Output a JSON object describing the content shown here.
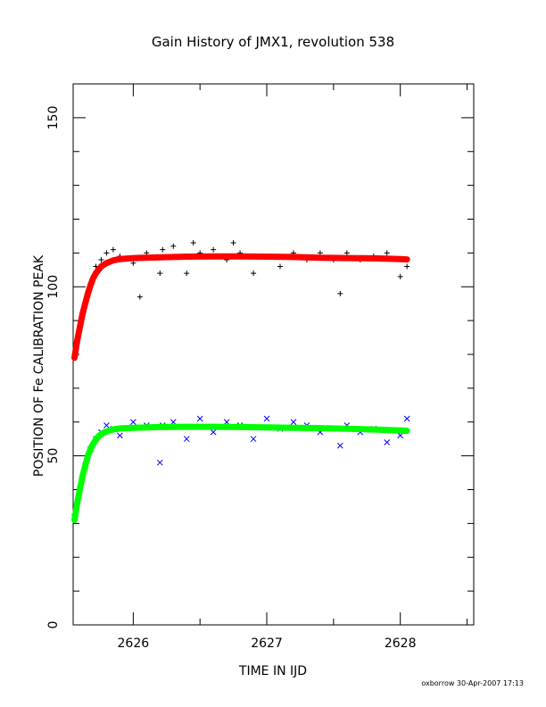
{
  "chart_data": {
    "type": "scatter",
    "title": "Gain History of JMX1, revolution 538",
    "xlabel": "TIME IN IJD",
    "ylabel": "POSITION OF Fe CALIBRATION PEAK",
    "xlim": [
      2625.55,
      2628.55
    ],
    "ylim": [
      0,
      160
    ],
    "x_ticks": [
      2626,
      2627,
      2628
    ],
    "x_tick_labels": [
      "2626",
      "2627",
      "2628"
    ],
    "y_ticks": [
      0,
      50,
      100,
      150
    ],
    "y_tick_labels": [
      "0",
      "50",
      "100",
      "150"
    ],
    "grid": false,
    "legend": "none",
    "footer": "oxborrow 30-Apr-2007 17:13",
    "series": [
      {
        "marker": "plus",
        "color": "#000000",
        "x": [
          2625.56,
          2625.6,
          2625.64,
          2625.68,
          2625.72,
          2625.76,
          2625.8,
          2625.85,
          2625.9,
          2626.0,
          2626.05,
          2626.1,
          2626.2,
          2626.22,
          2626.3,
          2626.4,
          2626.45,
          2626.5,
          2626.6,
          2626.7,
          2626.75,
          2626.8,
          2626.9,
          2627.0,
          2627.1,
          2627.2,
          2627.3,
          2627.4,
          2627.5,
          2627.55,
          2627.6,
          2627.7,
          2627.8,
          2627.9,
          2628.0,
          2628.05
        ],
        "y": [
          80,
          88,
          95,
          101,
          106,
          108,
          110,
          111,
          109,
          107,
          97,
          110,
          104,
          111,
          112,
          104,
          113,
          110,
          111,
          108,
          113,
          110,
          104,
          109,
          106,
          110,
          108,
          110,
          108,
          98,
          110,
          108,
          109,
          110,
          103,
          106
        ]
      },
      {
        "marker": "line",
        "color": "#ff0000",
        "x": [
          2625.56,
          2625.58,
          2625.6,
          2625.62,
          2625.64,
          2625.66,
          2625.68,
          2625.7,
          2625.72,
          2625.74,
          2625.76,
          2625.8,
          2625.85,
          2625.9,
          2626.0,
          2626.2,
          2626.4,
          2626.6,
          2626.8,
          2627.0,
          2627.2,
          2627.4,
          2627.6,
          2627.8,
          2628.0,
          2628.05
        ],
        "y": [
          79,
          84,
          88,
          92,
          95,
          98,
          100.5,
          102.5,
          104,
          105,
          106,
          107,
          107.8,
          108.2,
          108.5,
          108.7,
          108.9,
          109,
          109,
          108.9,
          108.8,
          108.6,
          108.5,
          108.4,
          108.2,
          108.1
        ]
      },
      {
        "marker": "cross",
        "color": "#0000ff",
        "x": [
          2625.56,
          2625.6,
          2625.64,
          2625.68,
          2625.72,
          2625.76,
          2625.8,
          2625.85,
          2625.9,
          2626.0,
          2626.1,
          2626.2,
          2626.22,
          2626.3,
          2626.4,
          2626.5,
          2626.6,
          2626.7,
          2626.8,
          2626.9,
          2627.0,
          2627.1,
          2627.2,
          2627.3,
          2627.4,
          2627.5,
          2627.55,
          2627.6,
          2627.7,
          2627.8,
          2627.9,
          2628.0,
          2628.05
        ],
        "y": [
          32,
          40,
          47,
          52,
          55,
          57,
          59,
          58,
          56,
          60,
          59,
          48,
          59,
          60,
          55,
          61,
          57,
          60,
          59,
          55,
          61,
          58,
          60,
          59,
          57,
          58,
          53,
          59,
          57,
          58,
          54,
          56,
          61
        ]
      },
      {
        "marker": "line",
        "color": "#00ff00",
        "x": [
          2625.56,
          2625.58,
          2625.6,
          2625.62,
          2625.64,
          2625.66,
          2625.68,
          2625.7,
          2625.72,
          2625.74,
          2625.76,
          2625.8,
          2625.85,
          2625.9,
          2626.0,
          2626.2,
          2626.4,
          2626.6,
          2626.8,
          2627.0,
          2627.2,
          2627.4,
          2627.6,
          2627.8,
          2628.0,
          2628.05
        ],
        "y": [
          31,
          36,
          40,
          44,
          47,
          50,
          52,
          53.5,
          54.8,
          55.8,
          56.4,
          57.2,
          57.8,
          58.1,
          58.3,
          58.5,
          58.6,
          58.6,
          58.5,
          58.4,
          58.3,
          58.2,
          58.0,
          57.8,
          57.5,
          57.4
        ]
      }
    ]
  }
}
